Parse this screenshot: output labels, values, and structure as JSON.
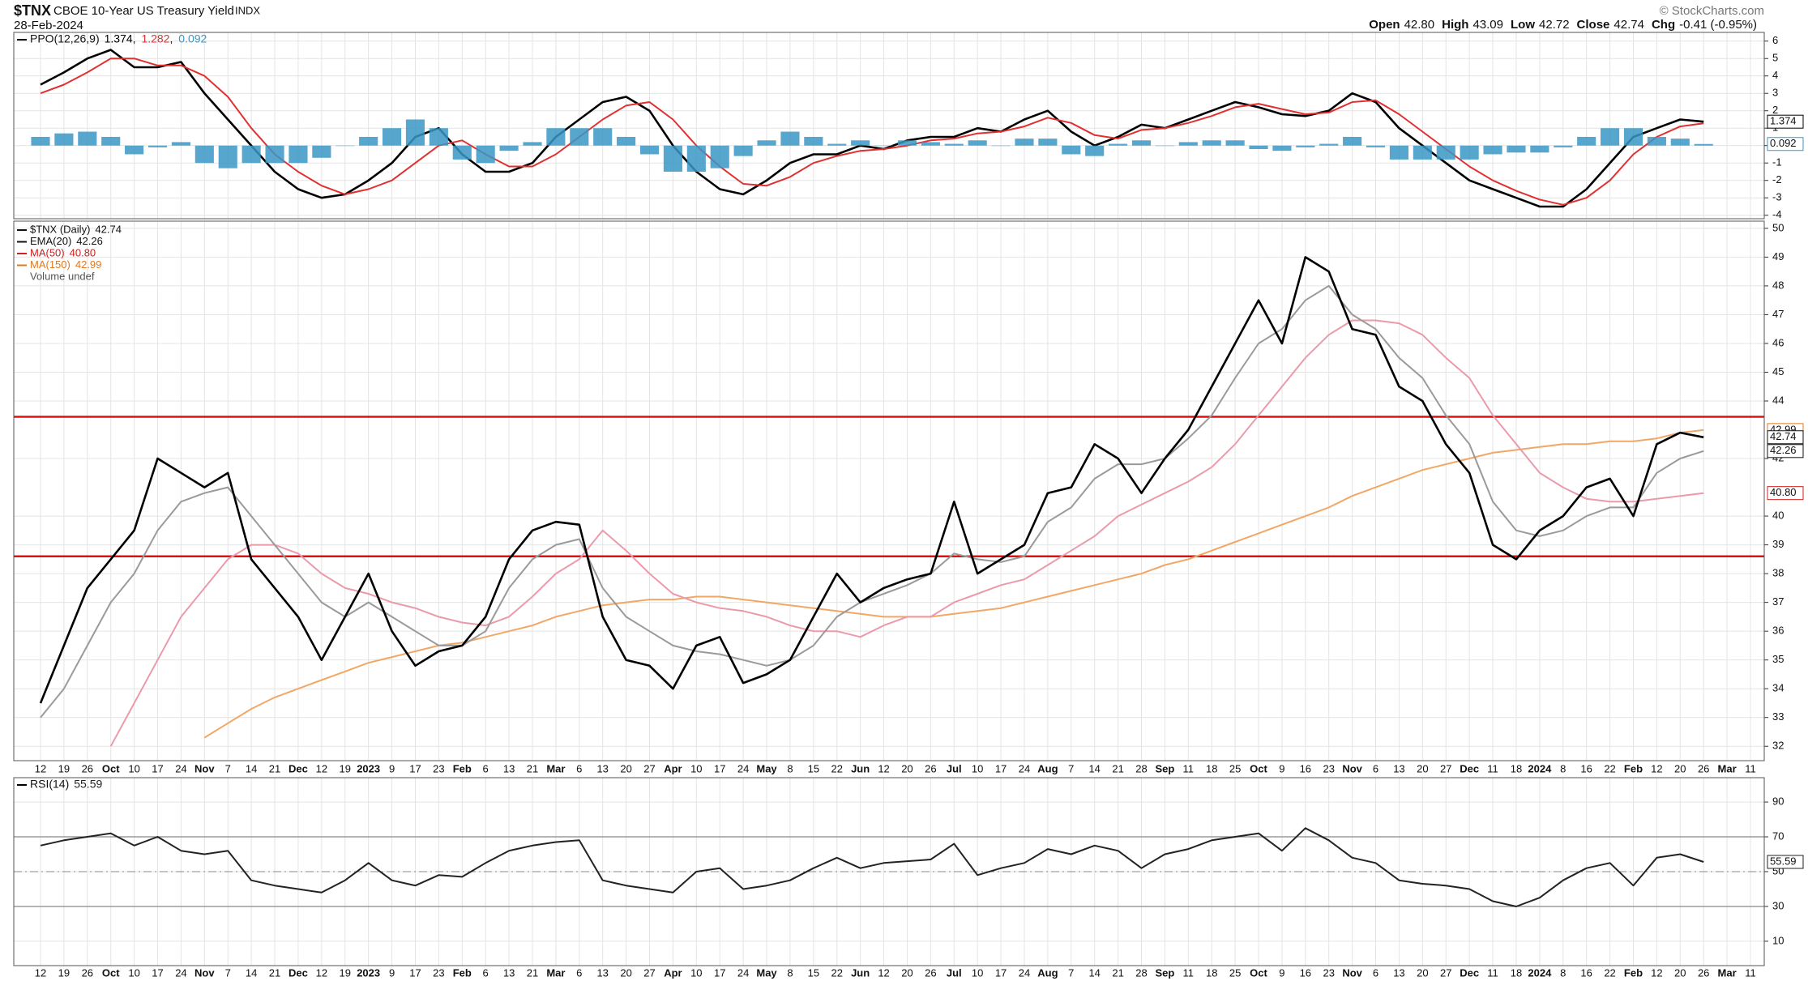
{
  "header": {
    "symbol": "$TNX",
    "name": "CBOE 10-Year US Treasury Yield",
    "exchange": "INDX",
    "date": "28-Feb-2024",
    "credit": "© StockCharts.com",
    "quote": [
      {
        "label": "Open",
        "value": "42.80"
      },
      {
        "label": "High",
        "value": "43.09"
      },
      {
        "label": "Low",
        "value": "42.72"
      },
      {
        "label": "Close",
        "value": "42.74"
      },
      {
        "label": "Chg",
        "value": "-0.41 (-0.95%)"
      }
    ]
  },
  "chart_data": [
    {
      "type": "line",
      "title": "PPO(12,26,9)",
      "legend_separator": ", ",
      "ylim": [
        -4.2,
        6.5
      ],
      "yticks": [
        -4,
        -3,
        -2,
        -1,
        0,
        1,
        2,
        3,
        4,
        5,
        6
      ],
      "grid": true,
      "series": [
        {
          "color": "#000000",
          "box": true,
          "last_label": "1.374",
          "values": [
            3.5,
            4.2,
            5.0,
            5.5,
            4.5,
            4.5,
            4.8,
            3.0,
            1.5,
            0,
            -1.5,
            -2.5,
            -3.0,
            -2.8,
            -2.0,
            -1.0,
            0.5,
            1.0,
            -0.5,
            -1.5,
            -1.5,
            -1.0,
            0.5,
            1.5,
            2.5,
            2.8,
            2.0,
            0,
            -1.5,
            -2.5,
            -2.8,
            -2.0,
            -1.0,
            -0.5,
            -0.5,
            0,
            -0.2,
            0.3,
            0.5,
            0.5,
            1.0,
            0.8,
            1.5,
            2.0,
            0.8,
            0,
            0.5,
            1.2,
            1.0,
            1.5,
            2.0,
            2.5,
            2.2,
            1.8,
            1.7,
            2.0,
            3.0,
            2.5,
            1.0,
            0,
            -1.0,
            -2.0,
            -2.5,
            -3.0,
            -3.5,
            -3.5,
            -2.5,
            -1.0,
            0.5,
            1.0,
            1.5,
            1.374,
            null,
            null
          ]
        },
        {
          "color": "#e03030",
          "box": false,
          "last_label": "1.282",
          "values": [
            3.0,
            3.5,
            4.2,
            5.0,
            5.0,
            4.6,
            4.6,
            4.0,
            2.8,
            1.0,
            -0.5,
            -1.5,
            -2.3,
            -2.8,
            -2.5,
            -2.0,
            -1.0,
            0,
            0.3,
            -0.5,
            -1.2,
            -1.2,
            -0.5,
            0.5,
            1.5,
            2.3,
            2.5,
            1.5,
            0,
            -1.2,
            -2.2,
            -2.3,
            -1.8,
            -1.0,
            -0.6,
            -0.3,
            -0.2,
            0,
            0.3,
            0.4,
            0.7,
            0.8,
            1.1,
            1.6,
            1.3,
            0.6,
            0.4,
            0.9,
            1.0,
            1.3,
            1.7,
            2.2,
            2.4,
            2.1,
            1.8,
            1.9,
            2.5,
            2.6,
            1.8,
            0.8,
            -0.2,
            -1.2,
            -2.0,
            -2.6,
            -3.1,
            -3.4,
            -3.0,
            -2.0,
            -0.5,
            0.5,
            1.1,
            1.282,
            null,
            null
          ]
        },
        {
          "color": "#3a96c4",
          "kind": "histogram",
          "box": true,
          "last_label": "0.092",
          "values": [
            0.5,
            0.7,
            0.8,
            0.5,
            -0.5,
            -0.1,
            0.2,
            -1.0,
            -1.3,
            -1.0,
            -1.0,
            -1.0,
            -0.7,
            0,
            0.5,
            1.0,
            1.5,
            1.0,
            -0.8,
            -1.0,
            -0.3,
            0.2,
            1.0,
            1.0,
            1.0,
            0.5,
            -0.5,
            -1.5,
            -1.5,
            -1.3,
            -0.6,
            0.3,
            0.8,
            0.5,
            0.1,
            0.3,
            0,
            0.3,
            0.2,
            0.1,
            0.3,
            0,
            0.4,
            0.4,
            -0.5,
            -0.6,
            0.1,
            0.3,
            0,
            0.2,
            0.3,
            0.3,
            -0.2,
            -0.3,
            -0.1,
            0.1,
            0.5,
            -0.1,
            -0.8,
            -0.8,
            -0.8,
            -0.8,
            -0.5,
            -0.4,
            -0.4,
            -0.1,
            0.5,
            1.0,
            1.0,
            0.5,
            0.4,
            0.092,
            null,
            null
          ]
        }
      ]
    },
    {
      "type": "line",
      "volume_label": "Volume undef",
      "ylim": [
        31.5,
        50.25
      ],
      "yticks": [
        32,
        33,
        34,
        35,
        36,
        37,
        38,
        39,
        40,
        42,
        44,
        45,
        46,
        47,
        48,
        49,
        50
      ],
      "grid": true,
      "levels": [
        {
          "value": 43.45,
          "color": "#e01010"
        },
        {
          "value": 38.6,
          "color": "#e01010"
        }
      ],
      "categories": [
        "12",
        "19",
        "26",
        "Oct",
        "10",
        "17",
        "24",
        "Nov",
        "7",
        "14",
        "21",
        "Dec",
        "12",
        "19",
        "2023",
        "9",
        "17",
        "23",
        "Feb",
        "6",
        "13",
        "21",
        "Mar",
        "6",
        "13",
        "20",
        "27",
        "Apr",
        "10",
        "17",
        "24",
        "May",
        "8",
        "15",
        "22",
        "Jun",
        "12",
        "20",
        "26",
        "Jul",
        "10",
        "17",
        "24",
        "Aug",
        "7",
        "14",
        "21",
        "28",
        "Sep",
        "11",
        "18",
        "25",
        "Oct",
        "9",
        "16",
        "23",
        "Nov",
        "6",
        "13",
        "20",
        "27",
        "Dec",
        "11",
        "18",
        "2024",
        "8",
        "16",
        "22",
        "Feb",
        "12",
        "20",
        "26",
        "Mar",
        "11"
      ],
      "series": [
        {
          "name": "MA(150)",
          "color": "#f2a766",
          "legend_color": "#e07820",
          "box": true,
          "last_label": "42.99",
          "values": [
            null,
            null,
            null,
            null,
            null,
            null,
            null,
            32.3,
            32.8,
            33.3,
            33.7,
            34,
            34.3,
            34.6,
            34.9,
            35.1,
            35.3,
            35.5,
            35.6,
            35.8,
            36.0,
            36.2,
            36.5,
            36.7,
            36.9,
            37.0,
            37.1,
            37.1,
            37.2,
            37.2,
            37.1,
            37.0,
            36.9,
            36.8,
            36.7,
            36.6,
            36.5,
            36.5,
            36.5,
            36.6,
            36.7,
            36.8,
            37.0,
            37.2,
            37.4,
            37.6,
            37.8,
            38.0,
            38.3,
            38.5,
            38.8,
            39.1,
            39.4,
            39.7,
            40.0,
            40.3,
            40.7,
            41.0,
            41.3,
            41.6,
            41.8,
            42.0,
            42.2,
            42.3,
            42.4,
            42.5,
            42.5,
            42.6,
            42.6,
            42.7,
            42.9,
            42.99,
            null,
            null
          ]
        },
        {
          "name": "MA(50)",
          "color": "#eb9aaa",
          "legend_color": "#d02020",
          "box": true,
          "last_label": "40.80",
          "values": [
            null,
            null,
            null,
            32,
            33.5,
            35,
            36.5,
            37.5,
            38.5,
            39,
            39,
            38.7,
            38,
            37.5,
            37.3,
            37,
            36.8,
            36.5,
            36.3,
            36.2,
            36.5,
            37.2,
            38,
            38.5,
            39.5,
            38.8,
            38,
            37.3,
            37,
            36.8,
            36.7,
            36.5,
            36.2,
            36,
            36,
            35.8,
            36.2,
            36.5,
            36.5,
            37,
            37.3,
            37.6,
            37.8,
            38.3,
            38.8,
            39.3,
            40,
            40.4,
            40.8,
            41.2,
            41.7,
            42.5,
            43.5,
            44.5,
            45.5,
            46.3,
            46.8,
            46.8,
            46.7,
            46.3,
            45.5,
            44.8,
            43.5,
            42.5,
            41.5,
            41,
            40.6,
            40.5,
            40.5,
            40.6,
            40.7,
            40.8,
            null,
            null
          ]
        },
        {
          "name": "EMA(20)",
          "color": "#9a9a9a",
          "legend_color": "#111111",
          "box": true,
          "last_label": "42.26",
          "values": [
            33,
            34,
            35.5,
            37,
            38,
            39.5,
            40.5,
            40.8,
            41,
            40,
            39,
            38,
            37,
            36.5,
            37,
            36.5,
            36,
            35.5,
            35.5,
            36,
            37.5,
            38.5,
            39,
            39.2,
            37.5,
            36.5,
            36,
            35.5,
            35.3,
            35.2,
            35,
            34.8,
            35,
            35.5,
            36.5,
            37,
            37.3,
            37.6,
            38,
            38.7,
            38.5,
            38.4,
            38.6,
            39.8,
            40.3,
            41.3,
            41.8,
            41.8,
            42,
            42.7,
            43.5,
            44.8,
            46,
            46.5,
            47.5,
            48,
            47,
            46.5,
            45.5,
            44.8,
            43.5,
            42.5,
            40.5,
            39.5,
            39.3,
            39.5,
            40,
            40.3,
            40.3,
            41.5,
            42,
            42.26,
            null,
            null
          ]
        },
        {
          "name": "$TNX (Daily)",
          "color": "#000000",
          "legend_color": "#111111",
          "box": true,
          "last_label": "42.74",
          "values": [
            33.5,
            35.5,
            37.5,
            38.5,
            39.5,
            42.0,
            41.5,
            41.0,
            41.5,
            38.5,
            37.5,
            36.5,
            35.0,
            36.5,
            38.0,
            36.0,
            34.8,
            35.3,
            35.5,
            36.5,
            38.5,
            39.5,
            39.8,
            39.7,
            36.5,
            35.0,
            34.8,
            34.0,
            35.5,
            35.8,
            34.2,
            34.5,
            35.0,
            36.5,
            38.0,
            37.0,
            37.5,
            37.8,
            38.0,
            40.5,
            38.0,
            38.5,
            39.0,
            40.8,
            41.0,
            42.5,
            42.0,
            40.8,
            42.0,
            43.0,
            44.5,
            46.0,
            47.5,
            46.0,
            49.0,
            48.5,
            46.5,
            46.3,
            44.5,
            44.0,
            42.5,
            41.5,
            39.0,
            38.5,
            39.5,
            40.0,
            41.0,
            41.3,
            40.0,
            42.5,
            42.9,
            42.74,
            null,
            null
          ]
        }
      ]
    },
    {
      "type": "line",
      "title": "RSI(14)",
      "ylim": [
        -4,
        104
      ],
      "yticks": [
        10,
        30,
        50,
        70,
        90
      ],
      "grid": true,
      "bands": [
        30,
        70
      ],
      "midline": 50,
      "series": [
        {
          "color": "#222222",
          "box": true,
          "last_label": "55.59",
          "values": [
            65,
            68,
            70,
            72,
            65,
            70,
            62,
            60,
            62,
            45,
            42,
            40,
            38,
            45,
            55,
            45,
            42,
            48,
            47,
            55,
            62,
            65,
            67,
            68,
            45,
            42,
            40,
            38,
            50,
            52,
            40,
            42,
            45,
            52,
            58,
            52,
            55,
            56,
            57,
            66,
            48,
            52,
            55,
            63,
            60,
            65,
            62,
            52,
            60,
            63,
            68,
            70,
            72,
            62,
            75,
            68,
            58,
            55,
            45,
            43,
            42,
            40,
            33,
            30,
            35,
            45,
            52,
            55,
            42,
            58,
            60,
            55.59,
            null,
            null
          ]
        }
      ]
    }
  ]
}
